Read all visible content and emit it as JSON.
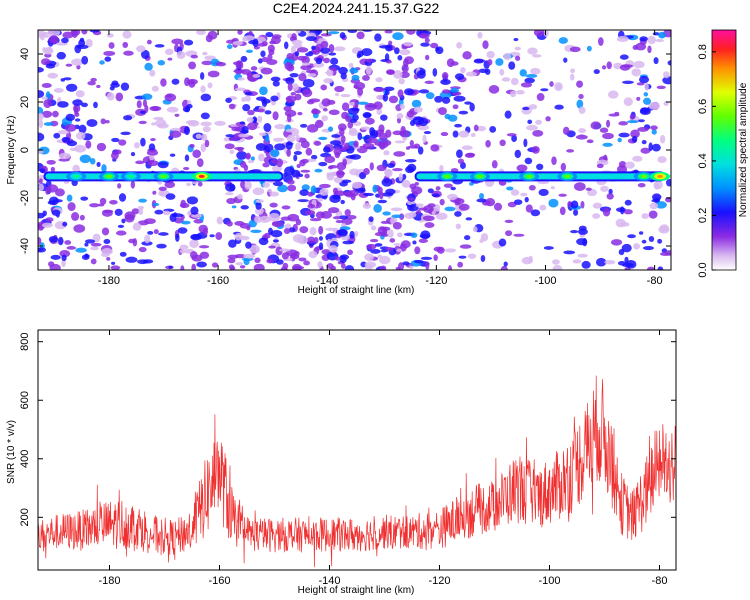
{
  "title": "C2E4.2024.241.15.37.G22",
  "chart_data": [
    {
      "type": "heatmap",
      "xlabel": "Height of straight line (km)",
      "ylabel": "Frequency (Hz)",
      "xlim": [
        -193,
        -77
      ],
      "ylim": [
        -50,
        50
      ],
      "xticks": [
        -180,
        -160,
        -140,
        -120,
        -100,
        -80
      ],
      "yticks": [
        -40,
        -20,
        0,
        20,
        40
      ],
      "colorbar": {
        "label": "Normalized spectral amplitude",
        "range": [
          0,
          0.88
        ],
        "ticks": [
          0.0,
          0.2,
          0.4,
          0.6,
          0.8
        ]
      },
      "signal_band": {
        "frequency": -11,
        "segments": [
          {
            "x": [
              -192,
              -148
            ]
          },
          {
            "x": [
              -124,
              -78
            ]
          }
        ],
        "peaks": [
          {
            "x": -186,
            "amplitude": 0.5
          },
          {
            "x": -180,
            "amplitude": 0.55
          },
          {
            "x": -176,
            "amplitude": 0.5
          },
          {
            "x": -170,
            "amplitude": 0.55
          },
          {
            "x": -163,
            "amplitude": 0.85
          },
          {
            "x": -118,
            "amplitude": 0.6
          },
          {
            "x": -112,
            "amplitude": 0.55
          },
          {
            "x": -103,
            "amplitude": 0.6
          },
          {
            "x": -96,
            "amplitude": 0.55
          },
          {
            "x": -82,
            "amplitude": 0.55
          },
          {
            "x": -79,
            "amplitude": 0.8
          }
        ]
      }
    },
    {
      "type": "line",
      "xlabel": "Height of straight line (km)",
      "ylabel": "SNR (10 * v/v)",
      "xlim": [
        -193,
        -77
      ],
      "ylim": [
        20,
        840
      ],
      "xticks": [
        -180,
        -160,
        -140,
        -120,
        -100,
        -80
      ],
      "yticks": [
        200,
        400,
        600,
        800
      ],
      "series": [
        {
          "color": "#f03030",
          "envelope": {
            "x": [
              -193,
              -190,
              -185,
              -182,
              -178,
              -175,
              -172,
              -168,
              -165,
              -162,
              -160,
              -158,
              -156,
              -153,
              -150,
              -145,
              -140,
              -135,
              -130,
              -125,
              -120,
              -117,
              -114,
              -110,
              -106,
              -102,
              -99,
              -96,
              -93,
              -91,
              -89,
              -87,
              -85,
              -82,
              -80,
              -77
            ],
            "mean": [
              130,
              150,
              155,
              170,
              180,
              170,
              140,
              130,
              160,
              290,
              360,
              220,
              150,
              140,
              140,
              140,
              140,
              140,
              150,
              150,
              160,
              190,
              220,
              240,
              300,
              270,
              300,
              350,
              440,
              520,
              420,
              250,
              200,
              300,
              400,
              380
            ],
            "spread": [
              60,
              60,
              70,
              80,
              90,
              80,
              70,
              60,
              80,
              150,
              160,
              120,
              60,
              60,
              60,
              60,
              60,
              60,
              60,
              60,
              70,
              80,
              90,
              90,
              120,
              110,
              120,
              140,
              170,
              200,
              170,
              110,
              90,
              130,
              150,
              150
            ]
          }
        }
      ]
    }
  ]
}
